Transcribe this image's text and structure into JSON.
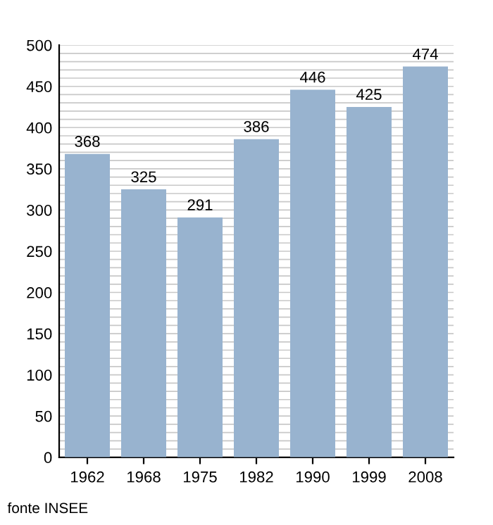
{
  "chart_data": {
    "type": "bar",
    "categories": [
      "1962",
      "1968",
      "1975",
      "1982",
      "1990",
      "1999",
      "2008"
    ],
    "values": [
      368,
      325,
      291,
      386,
      446,
      425,
      474
    ],
    "color": "#98b3cf",
    "data_labels": true,
    "ylim": [
      0,
      500
    ],
    "yticks": [
      0,
      {
        "value": 10,
        "label": null
      },
      {
        "value": 20,
        "label": null
      },
      {
        "value": 30,
        "label": null
      },
      {
        "value": 40,
        "label": null
      },
      50,
      {
        "value": 60,
        "label": null
      },
      {
        "value": 70,
        "label": null
      },
      {
        "value": 80,
        "label": null
      },
      {
        "value": 90,
        "label": null
      },
      100,
      {
        "value": 110,
        "label": null
      },
      {
        "value": 120,
        "label": null
      },
      {
        "value": 130,
        "label": null
      },
      {
        "value": 140,
        "label": null
      },
      150,
      {
        "value": 160,
        "label": null
      },
      {
        "value": 170,
        "label": null
      },
      {
        "value": 180,
        "label": null
      },
      {
        "value": 190,
        "label": null
      },
      200,
      {
        "value": 210,
        "label": null
      },
      {
        "value": 220,
        "label": null
      },
      {
        "value": 230,
        "label": null
      },
      {
        "value": 240,
        "label": null
      },
      250,
      {
        "value": 260,
        "label": null
      },
      {
        "value": 270,
        "label": null
      },
      {
        "value": 280,
        "label": null
      },
      {
        "value": 290,
        "label": null
      },
      300,
      {
        "value": 310,
        "label": null
      },
      {
        "value": 320,
        "label": null
      },
      {
        "value": 330,
        "label": null
      },
      {
        "value": 340,
        "label": null
      },
      350,
      {
        "value": 360,
        "label": null
      },
      {
        "value": 370,
        "label": null
      },
      {
        "value": 380,
        "label": null
      },
      {
        "value": 390,
        "label": null
      },
      400,
      {
        "value": 410,
        "label": null
      },
      {
        "value": 420,
        "label": null
      },
      {
        "value": 430,
        "label": null
      },
      {
        "value": 440,
        "label": null
      },
      450,
      {
        "value": 460,
        "label": null
      },
      {
        "value": 470,
        "label": null
      },
      {
        "value": 480,
        "label": null
      },
      {
        "value": 490,
        "label": null
      },
      500
    ],
    "grid": "y",
    "legend": false,
    "annotations": [
      "fonte INSEE"
    ]
  }
}
